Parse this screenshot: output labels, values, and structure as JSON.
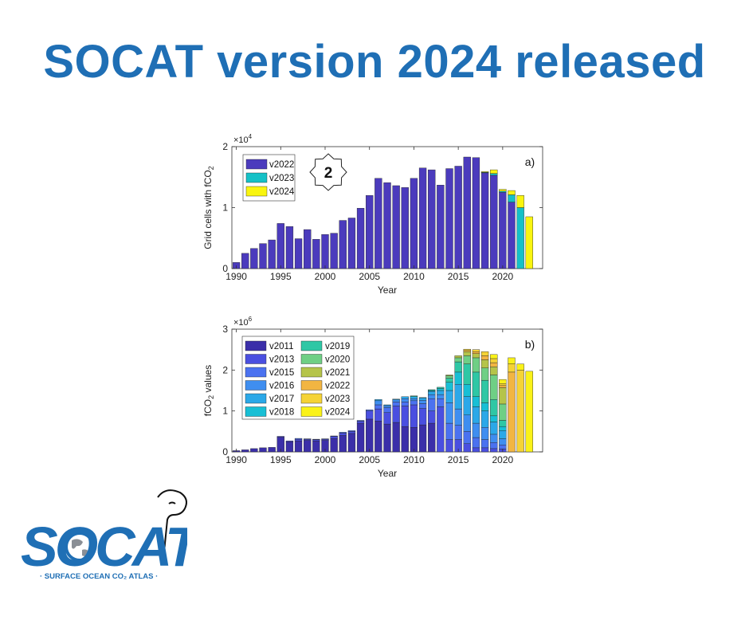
{
  "page": {
    "headline": "SOCAT version 2024 released"
  },
  "colors": {
    "headline": "#1f6fb5",
    "v2011": "#3b2fa9",
    "v2013": "#4a4fe0",
    "v2015": "#4b72f0",
    "v2016": "#3f8ef0",
    "v2017": "#2ba8e8",
    "v2018": "#18bfd5",
    "v2019": "#2fc7a5",
    "v2020": "#6fcf85",
    "v2021": "#b5c44a",
    "v2022": "#f2b542",
    "v2023": "#f5d336",
    "v2024": "#faf218",
    "a_v2022": "#4b3bbd",
    "a_v2023": "#15c1c7",
    "a_v2024": "#f9f50f"
  },
  "chart_data": [
    {
      "type": "bar",
      "panel_label": "a)",
      "badge": "2",
      "xlabel": "Year",
      "ylabel": "Grid cells with fCO",
      "ylabel_sub": "2",
      "exponent_base": "×10",
      "exponent": "4",
      "ylim": [
        0,
        2
      ],
      "xlim": [
        1990,
        2024
      ],
      "xticks": [
        1990,
        1995,
        2000,
        2005,
        2010,
        2015,
        2020
      ],
      "yticks": [
        0,
        1,
        2
      ],
      "legend": [
        "v2022",
        "v2023",
        "v2024"
      ],
      "legend_position": "top-left",
      "stacked": true,
      "x": [
        1990,
        1991,
        1992,
        1993,
        1994,
        1995,
        1996,
        1997,
        1998,
        1999,
        2000,
        2001,
        2002,
        2003,
        2004,
        2005,
        2006,
        2007,
        2008,
        2009,
        2010,
        2011,
        2012,
        2013,
        2014,
        2015,
        2016,
        2017,
        2018,
        2019,
        2020,
        2021,
        2022,
        2023
      ],
      "series": [
        {
          "name": "v2022",
          "values": [
            0.1,
            0.25,
            0.33,
            0.41,
            0.47,
            0.74,
            0.69,
            0.49,
            0.64,
            0.48,
            0.56,
            0.58,
            0.79,
            0.83,
            0.99,
            1.2,
            1.48,
            1.41,
            1.36,
            1.33,
            1.48,
            1.65,
            1.62,
            1.37,
            1.64,
            1.68,
            1.83,
            1.82,
            1.57,
            1.53,
            1.25,
            1.09,
            0,
            0
          ]
        },
        {
          "name": "v2023",
          "values": [
            0,
            0,
            0,
            0,
            0,
            0,
            0,
            0,
            0,
            0,
            0,
            0,
            0,
            0,
            0,
            0,
            0,
            0,
            0,
            0,
            0,
            0,
            0,
            0,
            0,
            0,
            0,
            0,
            0.01,
            0.03,
            0.02,
            0.12,
            1.0,
            0
          ]
        },
        {
          "name": "v2024",
          "values": [
            0,
            0,
            0,
            0,
            0,
            0,
            0,
            0,
            0,
            0,
            0,
            0,
            0,
            0,
            0,
            0,
            0,
            0,
            0,
            0,
            0,
            0,
            0,
            0,
            0,
            0,
            0,
            0,
            0.01,
            0.06,
            0.03,
            0.07,
            0.2,
            0.85
          ]
        }
      ]
    },
    {
      "type": "bar",
      "panel_label": "b)",
      "xlabel": "Year",
      "ylabel": "fCO",
      "ylabel_sub": "2",
      "ylabel_tail": " values",
      "exponent_base": "×10",
      "exponent": "6",
      "ylim": [
        0,
        3
      ],
      "xlim": [
        1990,
        2024
      ],
      "xticks": [
        1990,
        1995,
        2000,
        2005,
        2010,
        2015,
        2020
      ],
      "yticks": [
        0,
        1,
        2,
        3
      ],
      "legend": [
        "v2011",
        "v2013",
        "v2015",
        "v2016",
        "v2017",
        "v2018",
        "v2019",
        "v2020",
        "v2021",
        "v2022",
        "v2023",
        "v2024"
      ],
      "legend_position": "top-left",
      "stacked": true,
      "x": [
        1990,
        1991,
        1992,
        1993,
        1994,
        1995,
        1996,
        1997,
        1998,
        1999,
        2000,
        2001,
        2002,
        2003,
        2004,
        2005,
        2006,
        2007,
        2008,
        2009,
        2010,
        2011,
        2012,
        2013,
        2014,
        2015,
        2016,
        2017,
        2018,
        2019,
        2020,
        2021,
        2022,
        2023
      ],
      "series": [
        {
          "name": "v2011",
          "values": [
            0.03,
            0.05,
            0.08,
            0.1,
            0.11,
            0.36,
            0.25,
            0.27,
            0.28,
            0.27,
            0.28,
            0.33,
            0.4,
            0.45,
            0.7,
            0.8,
            0.75,
            0.68,
            0.72,
            0.62,
            0.6,
            0.66,
            0.7,
            0,
            0,
            0,
            0,
            0,
            0,
            0,
            0,
            0,
            0,
            0
          ]
        },
        {
          "name": "v2013",
          "values": [
            0,
            0,
            0,
            0,
            0,
            0.02,
            0.02,
            0.04,
            0.03,
            0.03,
            0.03,
            0.05,
            0.06,
            0.05,
            0.05,
            0.2,
            0.3,
            0.28,
            0.4,
            0.5,
            0.55,
            0.4,
            0.3,
            1.1,
            0.3,
            0.3,
            0.2,
            0.1,
            0.1,
            0.08,
            0.07,
            0,
            0,
            0
          ]
        },
        {
          "name": "v2015",
          "values": [
            0,
            0,
            0,
            0,
            0,
            0,
            0,
            0.02,
            0.01,
            0.01,
            0.01,
            0.01,
            0.02,
            0.02,
            0.02,
            0.03,
            0.1,
            0.12,
            0.1,
            0.1,
            0.1,
            0.12,
            0.3,
            0.2,
            0.4,
            0.35,
            0.3,
            0.25,
            0.2,
            0.15,
            0.1,
            0,
            0,
            0
          ]
        },
        {
          "name": "v2016",
          "values": [
            0,
            0,
            0,
            0,
            0,
            0,
            0,
            0,
            0,
            0,
            0,
            0,
            0,
            0,
            0,
            0,
            0.1,
            0.05,
            0.05,
            0.08,
            0.05,
            0.08,
            0.1,
            0.1,
            0.5,
            0.4,
            0.4,
            0.35,
            0.3,
            0.2,
            0.15,
            0,
            0,
            0
          ]
        },
        {
          "name": "v2017",
          "values": [
            0,
            0,
            0,
            0,
            0,
            0,
            0,
            0,
            0,
            0,
            0,
            0,
            0,
            0,
            0,
            0,
            0.03,
            0.02,
            0.02,
            0.05,
            0.05,
            0.06,
            0.08,
            0.1,
            0.3,
            0.6,
            0.45,
            0.4,
            0.4,
            0.3,
            0.2,
            0,
            0,
            0
          ]
        },
        {
          "name": "v2018",
          "values": [
            0,
            0,
            0,
            0,
            0,
            0,
            0,
            0,
            0,
            0,
            0,
            0,
            0,
            0,
            0,
            0,
            0,
            0,
            0,
            0,
            0,
            0,
            0.02,
            0.05,
            0.2,
            0.3,
            0.3,
            0.25,
            0.2,
            0.15,
            0.1,
            0,
            0,
            0
          ]
        },
        {
          "name": "v2019",
          "values": [
            0,
            0,
            0,
            0,
            0,
            0,
            0,
            0,
            0,
            0,
            0,
            0,
            0,
            0,
            0,
            0,
            0,
            0,
            0,
            0,
            0.02,
            0.01,
            0.02,
            0.03,
            0.1,
            0.25,
            0.5,
            0.6,
            0.55,
            0.4,
            0.15,
            0,
            0,
            0
          ]
        },
        {
          "name": "v2020",
          "values": [
            0,
            0,
            0,
            0,
            0,
            0,
            0,
            0,
            0,
            0,
            0,
            0,
            0,
            0,
            0,
            0,
            0,
            0,
            0,
            0,
            0,
            0,
            0,
            0,
            0.06,
            0.1,
            0.2,
            0.35,
            0.3,
            0.6,
            0.4,
            0,
            0,
            0
          ]
        },
        {
          "name": "v2021",
          "values": [
            0,
            0,
            0,
            0,
            0,
            0,
            0,
            0,
            0,
            0,
            0,
            0,
            0,
            0,
            0,
            0,
            0,
            0,
            0,
            0,
            0,
            0,
            0,
            0,
            0.02,
            0.05,
            0.1,
            0.1,
            0.2,
            0.2,
            0.4,
            0,
            0,
            0
          ]
        },
        {
          "name": "v2022",
          "values": [
            0,
            0,
            0,
            0,
            0,
            0,
            0,
            0,
            0,
            0,
            0,
            0,
            0,
            0,
            0,
            0,
            0,
            0,
            0,
            0,
            0,
            0,
            0,
            0,
            0,
            0,
            0.03,
            0.05,
            0.1,
            0.1,
            0.05,
            1.95,
            0,
            0
          ]
        },
        {
          "name": "v2023",
          "values": [
            0,
            0,
            0,
            0,
            0,
            0,
            0,
            0,
            0,
            0,
            0,
            0,
            0,
            0,
            0,
            0,
            0,
            0,
            0,
            0,
            0,
            0,
            0,
            0,
            0,
            0,
            0.03,
            0.05,
            0.1,
            0.1,
            0.05,
            0.2,
            2.0,
            0
          ]
        },
        {
          "name": "v2024",
          "values": [
            0,
            0,
            0,
            0,
            0,
            0,
            0,
            0,
            0,
            0,
            0,
            0,
            0,
            0,
            0,
            0,
            0,
            0,
            0,
            0,
            0,
            0,
            0,
            0,
            0,
            0,
            0,
            0,
            0,
            0.1,
            0.1,
            0.15,
            0.15,
            1.97
          ]
        }
      ]
    }
  ],
  "logo": {
    "word": "SOCAT",
    "tagline": "· SURFACE OCEAN CO₂ ATLAS ·"
  }
}
